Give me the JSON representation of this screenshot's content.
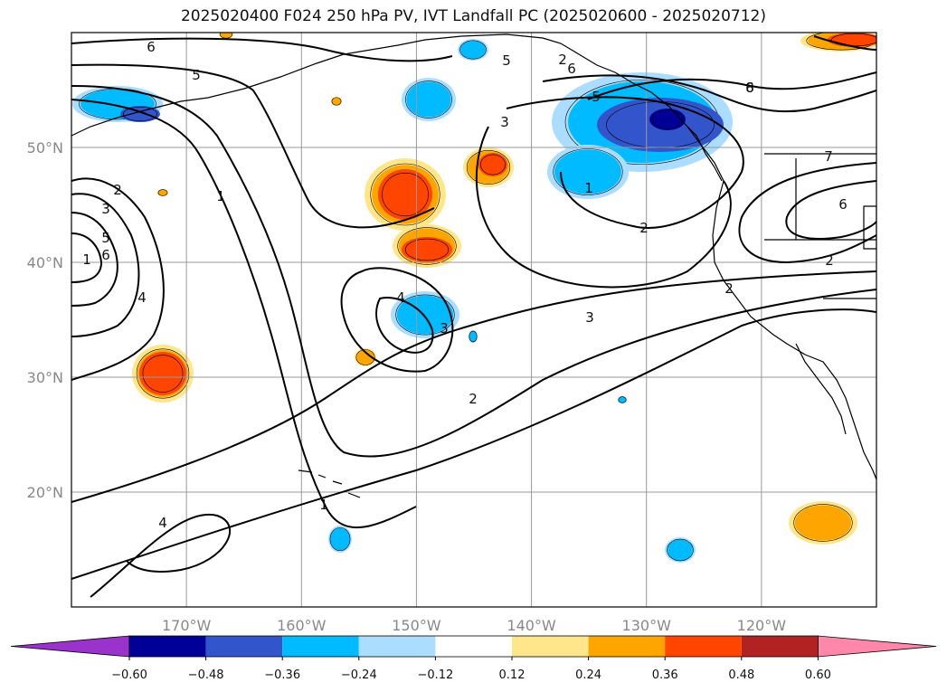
{
  "title": "2025020400 F024 250 hPa PV, IVT Landfall PC (2025020600 - 2025020712)",
  "map": {
    "lon_range": [
      -180,
      -110
    ],
    "lat_range": [
      10,
      60
    ],
    "lat_ticks": [
      "50°N",
      "40°N",
      "30°N",
      "20°N"
    ],
    "lon_ticks": [
      "170°W",
      "160°W",
      "150°W",
      "140°W",
      "130°W",
      "120°W"
    ],
    "grid": true,
    "contour_labels": [
      "6",
      "5",
      "1",
      "2",
      "3",
      "5",
      "6",
      "4",
      "1",
      "2",
      "3",
      "5",
      "6",
      "4",
      "6",
      "5",
      "2",
      "1",
      "2",
      "8",
      "7",
      "6",
      "3",
      "2",
      "4",
      "3",
      "1",
      "2"
    ]
  },
  "colorbar": {
    "ticks": [
      "−0.60",
      "−0.48",
      "−0.36",
      "−0.24",
      "−0.12",
      "0.12",
      "0.24",
      "0.36",
      "0.48",
      "0.60"
    ],
    "colors": [
      "#9933cc",
      "#000099",
      "#3355cc",
      "#00bbff",
      "#aaddff",
      "#ffffff",
      "#ffe68a",
      "#ffa500",
      "#ff4500",
      "#b22222",
      "#ff88aa"
    ]
  },
  "anomaly_colors": {
    "dark_blue": "#000099",
    "blue": "#3355cc",
    "cyan": "#00bbff",
    "light_blue": "#aaddff",
    "yellow": "#ffe68a",
    "orange": "#ffa500",
    "red": "#ff4500"
  }
}
